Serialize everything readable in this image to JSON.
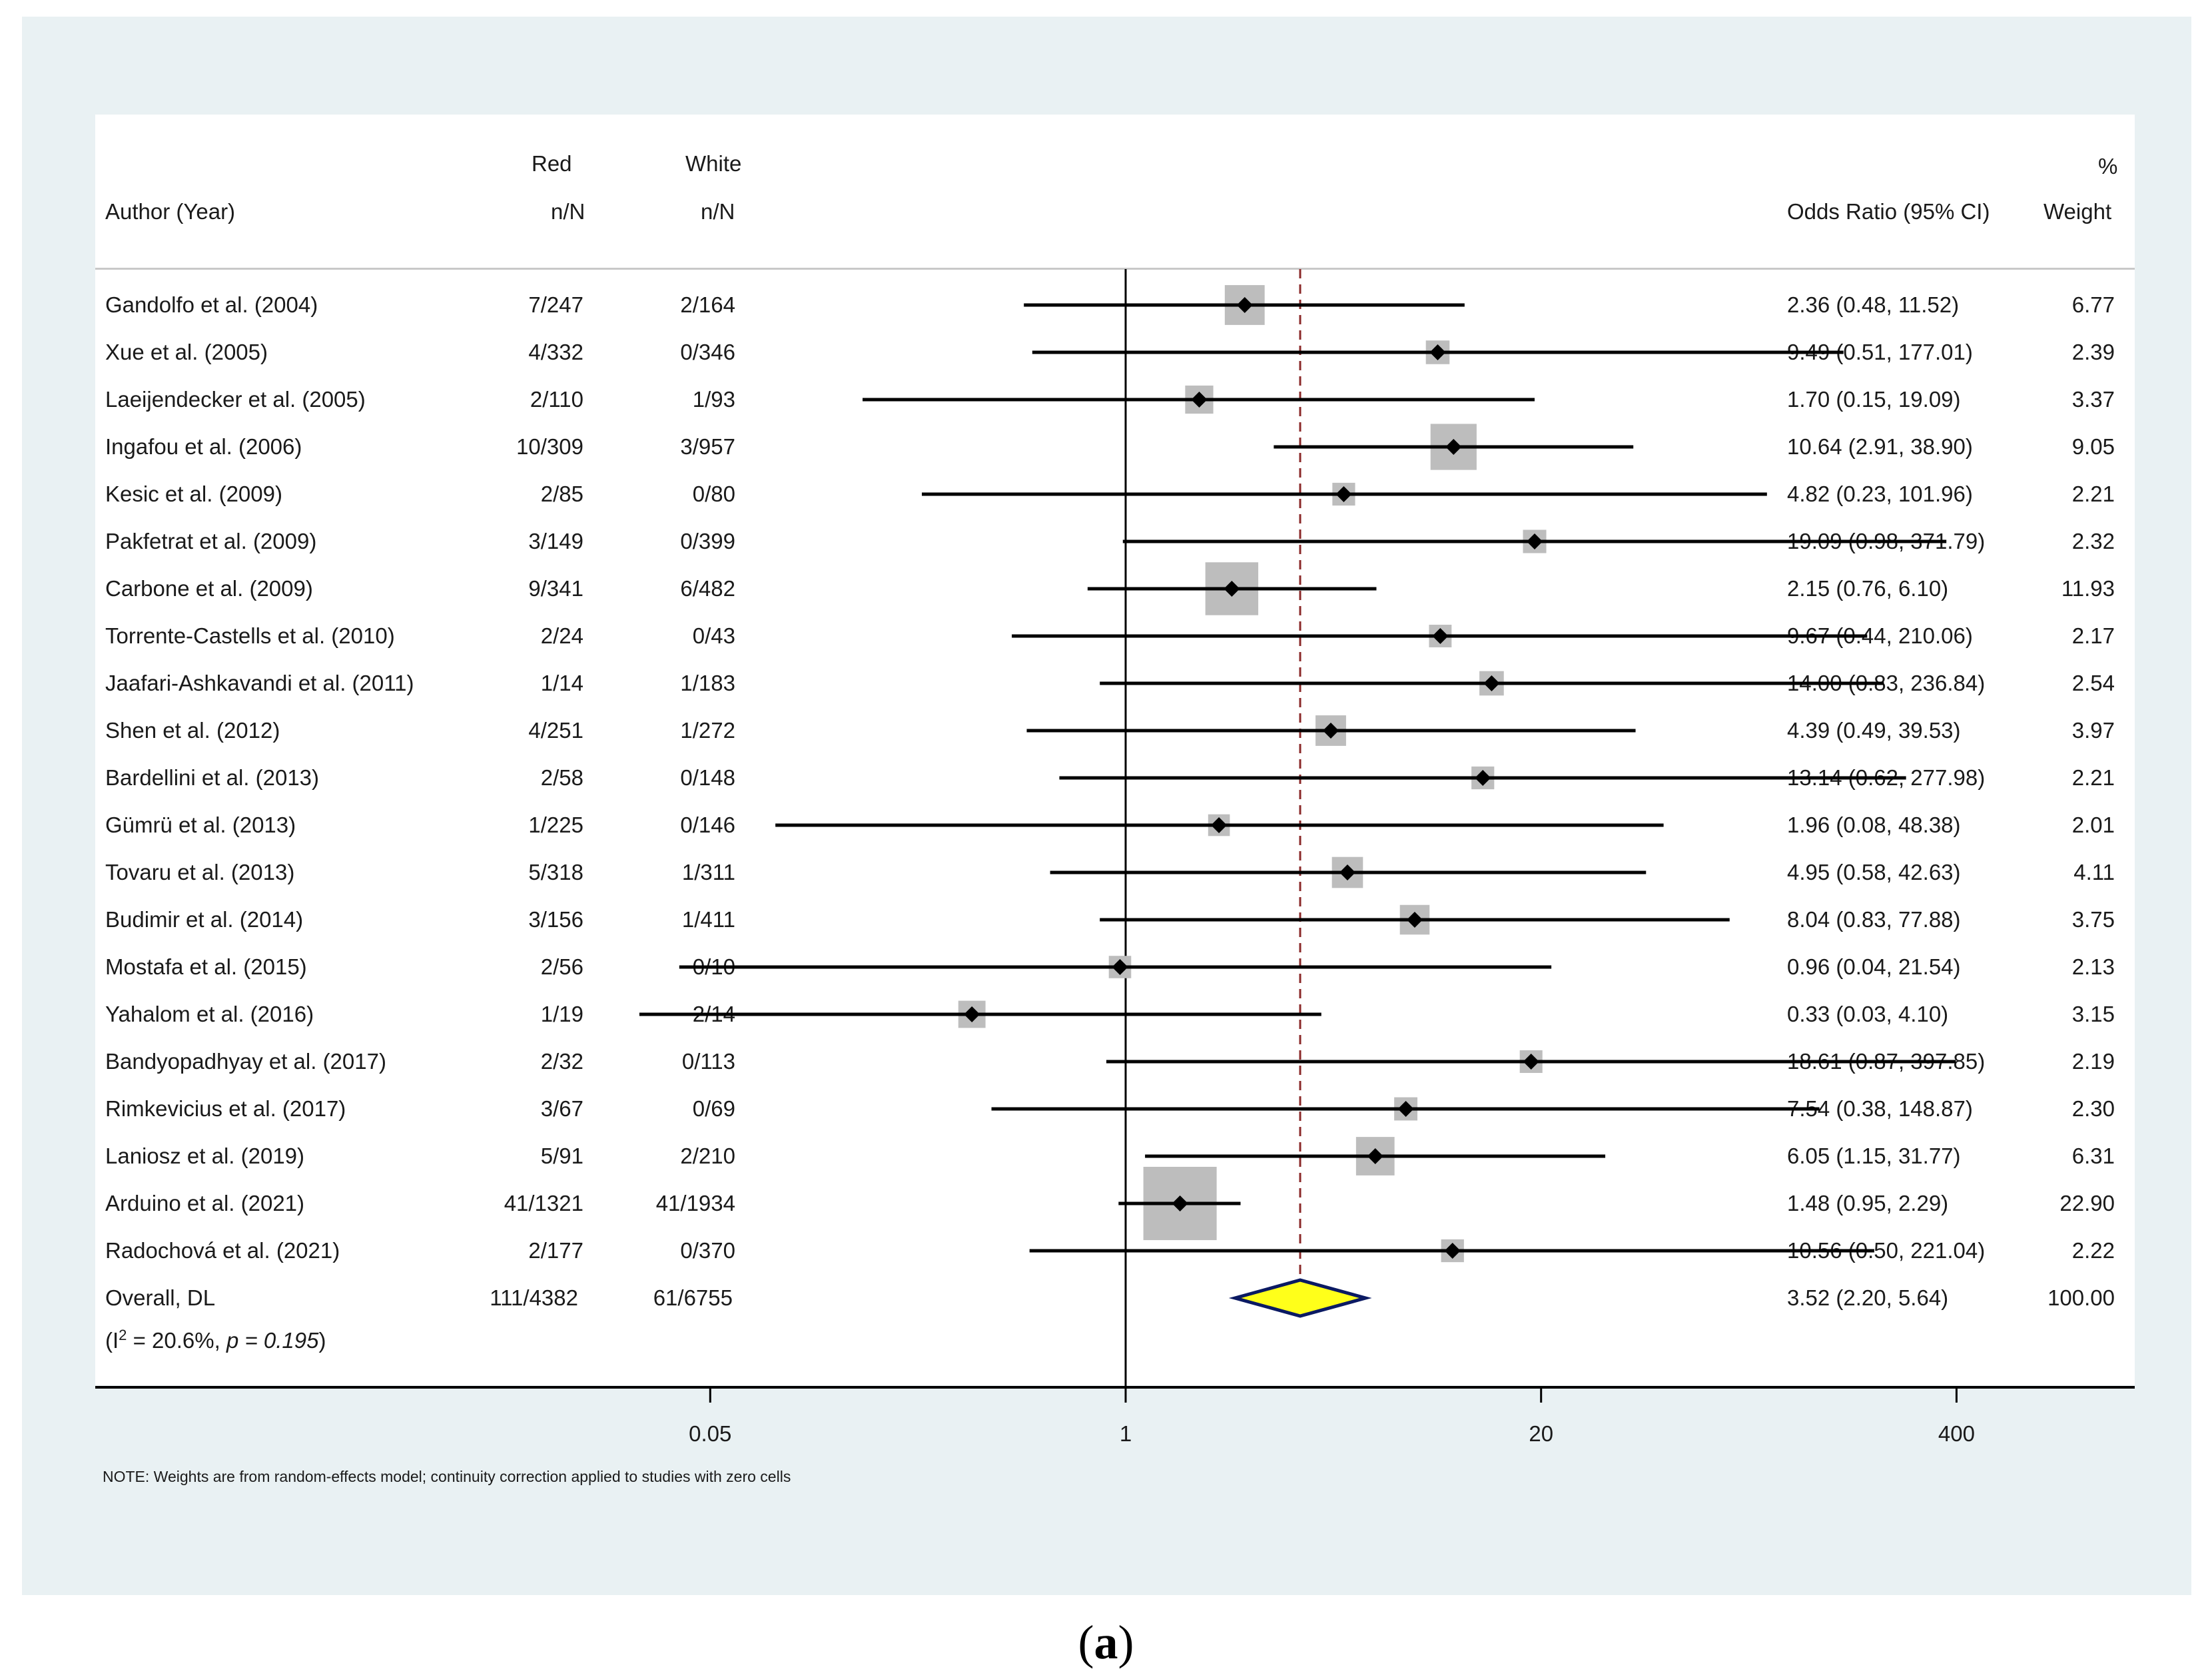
{
  "header": {
    "author": "Author (Year)",
    "red_top": "Red",
    "red_bottom": "n/N",
    "white_top": "White",
    "white_bottom": "n/N",
    "or_label": "Odds Ratio (95% CI)",
    "weight_top": "%",
    "weight_bottom": "Weight"
  },
  "chart_data": {
    "type": "forest",
    "x_scale": "log",
    "x_ticks": [
      0.05,
      1,
      20,
      400
    ],
    "x_tick_labels": [
      "0.05",
      "1",
      "20",
      "400"
    ],
    "null_line": 1,
    "overall_line": 3.52,
    "studies": [
      {
        "author": "Gandolfo et al. (2004)",
        "red": "7/247",
        "white": "2/164",
        "or": 2.36,
        "lo": 0.48,
        "hi": 11.52,
        "ci_text": "2.36 (0.48, 11.52)",
        "weight": 6.77,
        "weight_text": "6.77"
      },
      {
        "author": "Xue et al. (2005)",
        "red": "4/332",
        "white": "0/346",
        "or": 9.49,
        "lo": 0.51,
        "hi": 177.01,
        "ci_text": "9.49 (0.51, 177.01)",
        "weight": 2.39,
        "weight_text": "2.39"
      },
      {
        "author": "Laeijendecker et al. (2005)",
        "red": "2/110",
        "white": "1/93",
        "or": 1.7,
        "lo": 0.15,
        "hi": 19.09,
        "ci_text": "1.70 (0.15, 19.09)",
        "weight": 3.37,
        "weight_text": "3.37"
      },
      {
        "author": "Ingafou et al. (2006)",
        "red": "10/309",
        "white": "3/957",
        "or": 10.64,
        "lo": 2.91,
        "hi": 38.9,
        "ci_text": "10.64 (2.91, 38.90)",
        "weight": 9.05,
        "weight_text": "9.05"
      },
      {
        "author": "Kesic et al. (2009)",
        "red": "2/85",
        "white": "0/80",
        "or": 4.82,
        "lo": 0.23,
        "hi": 101.96,
        "ci_text": "4.82 (0.23, 101.96)",
        "weight": 2.21,
        "weight_text": "2.21"
      },
      {
        "author": "Pakfetrat et al. (2009)",
        "red": "3/149",
        "white": "0/399",
        "or": 19.09,
        "lo": 0.98,
        "hi": 371.79,
        "ci_text": "19.09 (0.98, 371.79)",
        "weight": 2.32,
        "weight_text": "2.32"
      },
      {
        "author": "Carbone et al. (2009)",
        "red": "9/341",
        "white": "6/482",
        "or": 2.15,
        "lo": 0.76,
        "hi": 6.1,
        "ci_text": "2.15 (0.76, 6.10)",
        "weight": 11.93,
        "weight_text": "11.93"
      },
      {
        "author": "Torrente-Castells et al. (2010)",
        "red": "2/24",
        "white": "0/43",
        "or": 9.67,
        "lo": 0.44,
        "hi": 210.06,
        "ci_text": "9.67 (0.44, 210.06)",
        "weight": 2.17,
        "weight_text": "2.17"
      },
      {
        "author": "Jaafari-Ashkavandi et al. (2011)",
        "red": "1/14",
        "white": "1/183",
        "or": 14.0,
        "lo": 0.83,
        "hi": 236.84,
        "ci_text": "14.00 (0.83, 236.84)",
        "weight": 2.54,
        "weight_text": "2.54"
      },
      {
        "author": "Shen et al. (2012)",
        "red": "4/251",
        "white": "1/272",
        "or": 4.39,
        "lo": 0.49,
        "hi": 39.53,
        "ci_text": "4.39 (0.49, 39.53)",
        "weight": 3.97,
        "weight_text": "3.97"
      },
      {
        "author": "Bardellini et al. (2013)",
        "red": "2/58",
        "white": "0/148",
        "or": 13.14,
        "lo": 0.62,
        "hi": 277.98,
        "ci_text": "13.14 (0.62, 277.98)",
        "weight": 2.21,
        "weight_text": "2.21"
      },
      {
        "author": "Gümrü et al. (2013)",
        "red": "1/225",
        "white": "0/146",
        "or": 1.96,
        "lo": 0.08,
        "hi": 48.38,
        "ci_text": "1.96 (0.08, 48.38)",
        "weight": 2.01,
        "weight_text": "2.01"
      },
      {
        "author": "Tovaru et al. (2013)",
        "red": "5/318",
        "white": "1/311",
        "or": 4.95,
        "lo": 0.58,
        "hi": 42.63,
        "ci_text": "4.95 (0.58, 42.63)",
        "weight": 4.11,
        "weight_text": "4.11"
      },
      {
        "author": "Budimir et al. (2014)",
        "red": "3/156",
        "white": "1/411",
        "or": 8.04,
        "lo": 0.83,
        "hi": 77.88,
        "ci_text": "8.04 (0.83, 77.88)",
        "weight": 3.75,
        "weight_text": "3.75"
      },
      {
        "author": "Mostafa et al. (2015)",
        "red": "2/56",
        "white": "0/10",
        "or": 0.96,
        "lo": 0.04,
        "hi": 21.54,
        "ci_text": "0.96 (0.04, 21.54)",
        "weight": 2.13,
        "weight_text": "2.13"
      },
      {
        "author": "Yahalom et al. (2016)",
        "red": "1/19",
        "white": "2/14",
        "or": 0.33,
        "lo": 0.03,
        "hi": 4.1,
        "ci_text": "0.33 (0.03, 4.10)",
        "weight": 3.15,
        "weight_text": "3.15"
      },
      {
        "author": "Bandyopadhyay et al. (2017)",
        "red": "2/32",
        "white": "0/113",
        "or": 18.61,
        "lo": 0.87,
        "hi": 397.85,
        "ci_text": "18.61 (0.87, 397.85)",
        "weight": 2.19,
        "weight_text": "2.19"
      },
      {
        "author": "Rimkevicius et al. (2017)",
        "red": "3/67",
        "white": "0/69",
        "or": 7.54,
        "lo": 0.38,
        "hi": 148.87,
        "ci_text": "7.54 (0.38, 148.87)",
        "weight": 2.3,
        "weight_text": "2.30"
      },
      {
        "author": "Laniosz et al. (2019)",
        "red": "5/91",
        "white": "2/210",
        "or": 6.05,
        "lo": 1.15,
        "hi": 31.77,
        "ci_text": "6.05 (1.15, 31.77)",
        "weight": 6.31,
        "weight_text": "6.31"
      },
      {
        "author": "Arduino et al. (2021)",
        "red": "41/1321",
        "white": "41/1934",
        "or": 1.48,
        "lo": 0.95,
        "hi": 2.29,
        "ci_text": "1.48 (0.95, 2.29)",
        "weight": 22.9,
        "weight_text": "22.90"
      },
      {
        "author": "Radochová et al. (2021)",
        "red": "2/177",
        "white": "0/370",
        "or": 10.56,
        "lo": 0.5,
        "hi": 221.04,
        "ci_text": "10.56 (0.50, 221.04)",
        "weight": 2.22,
        "weight_text": "2.22"
      }
    ],
    "overall": {
      "author": "Overall, DL",
      "red": "111/4382",
      "white": "61/6755",
      "or": 3.52,
      "lo": 2.2,
      "hi": 5.64,
      "ci_text": "3.52 (2.20, 5.64)",
      "weight_text": "100.00"
    },
    "heterogeneity": {
      "prefix": "(I",
      "sup": "2",
      "middle": " = 20.6%, ",
      "p_label": "p = 0.195",
      "suffix": ")"
    },
    "colors": {
      "diamond_fill": "#ffff1a",
      "diamond_stroke": "#0b1a63",
      "overall_line": "#8b2a2a",
      "box": "#bdbdbd",
      "marker": "#000000"
    }
  },
  "note": "NOTE: Weights are from random-effects model; continuity correction applied to studies with zero cells",
  "caption": {
    "open": "(",
    "letter": "a",
    "close": ")"
  }
}
